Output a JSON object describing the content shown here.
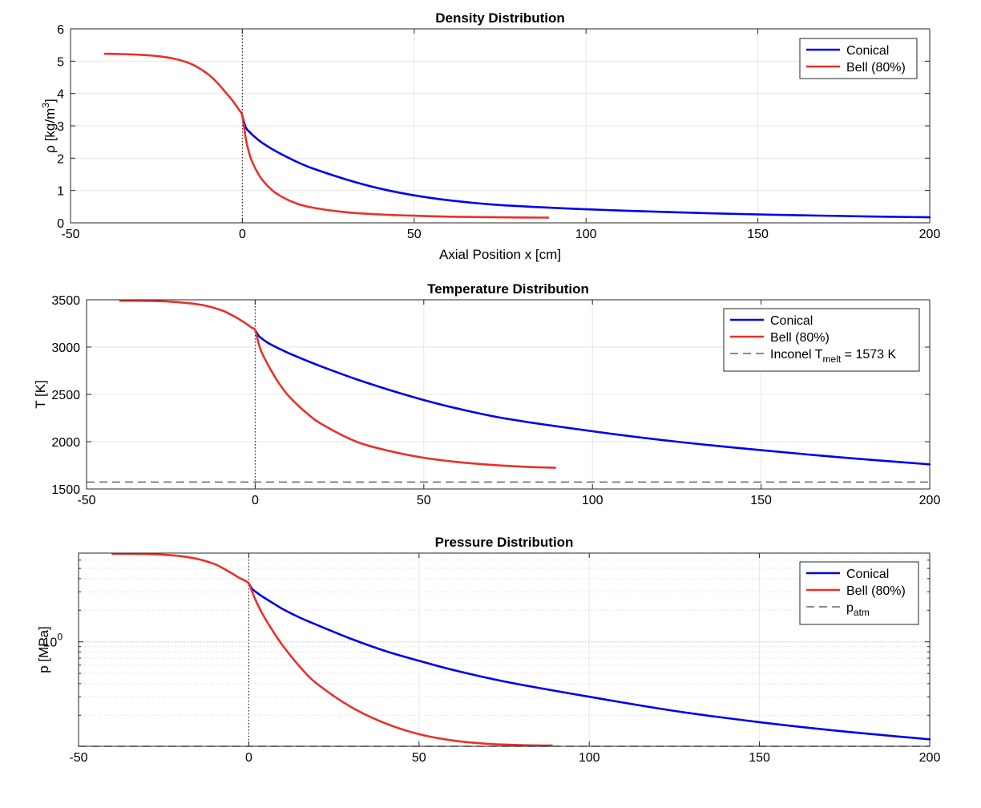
{
  "colors": {
    "conical": "#0000ee",
    "bell": "#e8312a",
    "ref": "#666666"
  },
  "chart_data": [
    {
      "id": "density",
      "type": "line",
      "title": "Density Distribution",
      "xlabel": "Axial Position x [cm]",
      "ylabel": "ρ [kg/m",
      "ylabel_sup": "3",
      "ylabel_tail": "]",
      "xlim": [
        -50,
        200
      ],
      "ylim": [
        0,
        6
      ],
      "yscale": "linear",
      "xticks": [
        -50,
        0,
        50,
        100,
        150,
        200
      ],
      "yticks": [
        0,
        1,
        2,
        3,
        4,
        5,
        6
      ],
      "throat_line_x": 0,
      "legend": {
        "position": "top-right",
        "entries": [
          {
            "series": "conical",
            "label": "Conical"
          },
          {
            "series": "bell",
            "label": "Bell (80%)"
          }
        ]
      },
      "series": [
        {
          "key": "conical",
          "name": "Conical",
          "x": [
            0,
            1,
            2,
            4,
            6,
            10,
            15,
            20,
            30,
            40,
            50,
            60,
            75,
            100,
            125,
            150,
            175,
            200
          ],
          "y": [
            3.3,
            2.95,
            2.82,
            2.62,
            2.46,
            2.2,
            1.93,
            1.7,
            1.35,
            1.06,
            0.85,
            0.7,
            0.55,
            0.42,
            0.33,
            0.26,
            0.21,
            0.17
          ]
        },
        {
          "key": "bell",
          "name": "Bell (80%)",
          "x": [
            -40,
            -35,
            -30,
            -25,
            -20,
            -15,
            -10,
            -7,
            -5,
            -3,
            -1,
            0,
            1,
            2,
            3,
            5,
            7,
            10,
            15,
            20,
            30,
            40,
            50,
            60,
            75,
            89
          ],
          "y": [
            5.23,
            5.22,
            5.2,
            5.16,
            5.08,
            4.92,
            4.6,
            4.3,
            4.05,
            3.8,
            3.5,
            3.3,
            2.6,
            2.15,
            1.85,
            1.45,
            1.18,
            0.9,
            0.63,
            0.48,
            0.33,
            0.26,
            0.22,
            0.19,
            0.17,
            0.16
          ]
        }
      ]
    },
    {
      "id": "temperature",
      "type": "line",
      "title": "Temperature Distribution",
      "xlabel": "",
      "ylabel": "T [K]",
      "xlim": [
        -50,
        200
      ],
      "ylim": [
        1500,
        3500
      ],
      "yscale": "linear",
      "xticks": [
        -50,
        0,
        50,
        100,
        150,
        200
      ],
      "yticks": [
        1500,
        2000,
        2500,
        3000,
        3500
      ],
      "throat_line_x": 0,
      "reference_line": {
        "y": 1573
      },
      "legend": {
        "position": "top-right",
        "entries": [
          {
            "series": "conical",
            "label": "Conical"
          },
          {
            "series": "bell",
            "label": "Bell (80%)"
          },
          {
            "series": "ref",
            "label": "Inconel T",
            "sub": "melt",
            "tail": " = 1573 K",
            "dashed": true
          }
        ]
      },
      "series": [
        {
          "key": "conical",
          "name": "Conical",
          "x": [
            0,
            1,
            2,
            4,
            7,
            10,
            15,
            20,
            30,
            40,
            50,
            60,
            75,
            100,
            125,
            150,
            175,
            200
          ],
          "y": [
            3180,
            3120,
            3090,
            3040,
            2985,
            2935,
            2860,
            2790,
            2660,
            2545,
            2440,
            2350,
            2240,
            2110,
            2000,
            1910,
            1830,
            1760
          ]
        },
        {
          "key": "bell",
          "name": "Bell (80%)",
          "x": [
            -40,
            -35,
            -30,
            -25,
            -20,
            -15,
            -10,
            -7,
            -5,
            -3,
            -1,
            0,
            1,
            2,
            4,
            7,
            10,
            15,
            20,
            30,
            40,
            50,
            60,
            70,
            80,
            89
          ],
          "y": [
            3490,
            3490,
            3487,
            3480,
            3465,
            3440,
            3390,
            3340,
            3300,
            3255,
            3205,
            3180,
            3040,
            2940,
            2800,
            2620,
            2480,
            2310,
            2180,
            2000,
            1900,
            1830,
            1785,
            1755,
            1735,
            1725
          ]
        }
      ]
    },
    {
      "id": "pressure",
      "type": "line",
      "title": "Pressure Distribution",
      "xlabel": "",
      "ylabel": "p [MPa]",
      "xlim": [
        -50,
        200
      ],
      "ylim": [
        0.1013,
        7.0
      ],
      "yscale": "log",
      "xticks": [
        -50,
        0,
        50,
        100,
        150,
        200
      ],
      "ytick_label": {
        "base": "10",
        "exp": "0",
        "value": 1
      },
      "throat_line_x": 0,
      "reference_line": {
        "y": 0.1013
      },
      "legend": {
        "position": "top-right",
        "entries": [
          {
            "series": "conical",
            "label": "Conical"
          },
          {
            "series": "bell",
            "label": "Bell (80%)"
          },
          {
            "series": "ref",
            "label": "p",
            "sub": "atm",
            "tail": "",
            "dashed": true
          }
        ]
      },
      "series": [
        {
          "key": "conical",
          "name": "Conical",
          "x": [
            0,
            1,
            2,
            4,
            7,
            10,
            15,
            20,
            30,
            40,
            50,
            60,
            75,
            100,
            125,
            150,
            175,
            200
          ],
          "y": [
            3.6,
            3.2,
            3.0,
            2.7,
            2.35,
            2.05,
            1.7,
            1.45,
            1.07,
            0.82,
            0.66,
            0.54,
            0.42,
            0.3,
            0.22,
            0.172,
            0.14,
            0.118
          ]
        },
        {
          "key": "bell",
          "name": "Bell (80%)",
          "x": [
            -40,
            -35,
            -30,
            -25,
            -20,
            -15,
            -10,
            -7,
            -5,
            -3,
            -1,
            0,
            1,
            2,
            4,
            7,
            10,
            15,
            20,
            30,
            40,
            50,
            60,
            70,
            80,
            89
          ],
          "y": [
            6.9,
            6.88,
            6.85,
            6.75,
            6.55,
            6.15,
            5.5,
            4.9,
            4.5,
            4.1,
            3.8,
            3.6,
            3.0,
            2.5,
            1.85,
            1.28,
            0.92,
            0.58,
            0.4,
            0.24,
            0.168,
            0.132,
            0.115,
            0.107,
            0.104,
            0.103
          ]
        }
      ]
    }
  ]
}
